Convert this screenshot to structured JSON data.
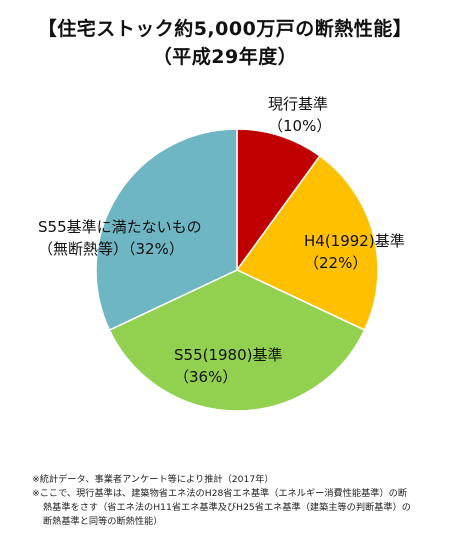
{
  "title_line1": "【住宅ストック約5,000万戸の断熱性能】",
  "title_line2": "（平成29年度）",
  "chart_data": {
    "type": "pie",
    "start_angle_deg": 0,
    "direction": "clockwise",
    "slices": [
      {
        "label": "現行基準",
        "pct_label": "（10%）",
        "value": 10,
        "color": "#c00000"
      },
      {
        "label": "H4(1992)基準",
        "pct_label": "（22%）",
        "value": 22,
        "color": "#ffc000"
      },
      {
        "label": "S55(1980)基準",
        "pct_label": "（36%）",
        "value": 36,
        "color": "#92d050"
      },
      {
        "label": "S55基準に満たないもの",
        "pct_label": "（無断熱等）（32%）",
        "value": 32,
        "color": "#6fb6c4"
      }
    ]
  },
  "notes": [
    "※統計データ、事業者アンケート等により推計（2017年）",
    "※ここで、現行基準は、建築物省エネ法のH28省エネ基準（エネルギー消費性能基準）の断",
    "熱基準をさす（省エネ法のH11省エネ基準及びH25省エネ基準（建築主等の判断基準）の",
    "断熱基準と同等の断熱性能）"
  ]
}
